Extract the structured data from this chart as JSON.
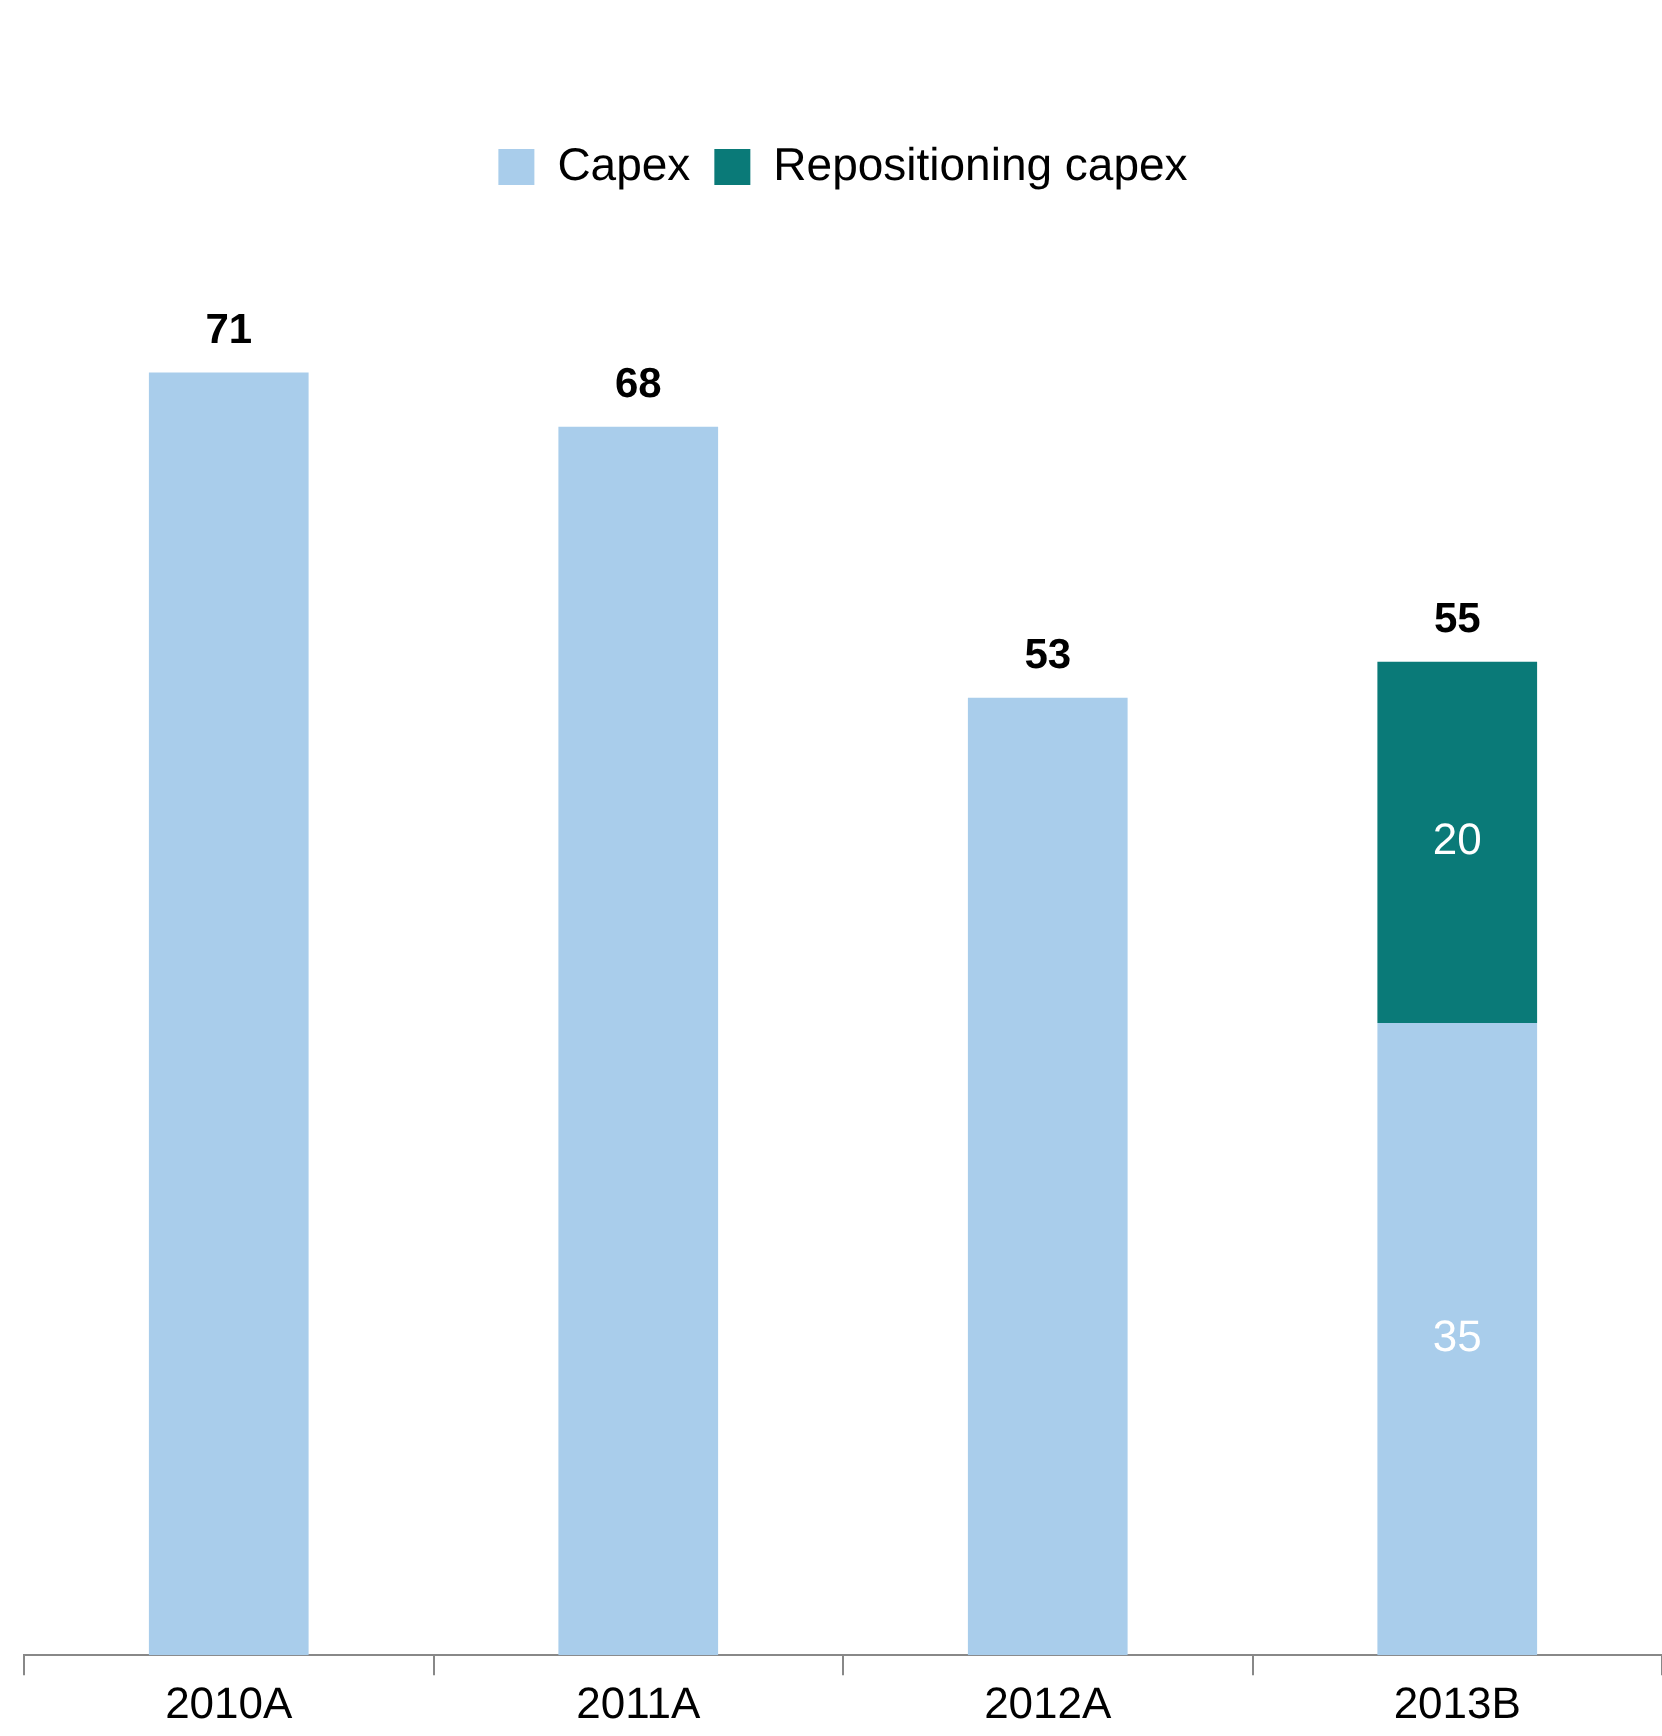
{
  "chart_data": {
    "type": "bar",
    "stacked": true,
    "categories": [
      "2010A",
      "2011A",
      "2012A",
      "2013B"
    ],
    "series": [
      {
        "name": "Capex",
        "color": "#a9cdeb",
        "values": [
          71,
          68,
          53,
          35
        ],
        "value_labels": [
          null,
          null,
          null,
          "35"
        ]
      },
      {
        "name": "Repositioning capex",
        "color": "#0a7a78",
        "values": [
          null,
          null,
          null,
          20
        ],
        "value_labels": [
          null,
          null,
          null,
          "20"
        ]
      }
    ],
    "totals": [
      "71",
      "68",
      "53",
      "55"
    ],
    "legend": "top",
    "grid": false
  }
}
